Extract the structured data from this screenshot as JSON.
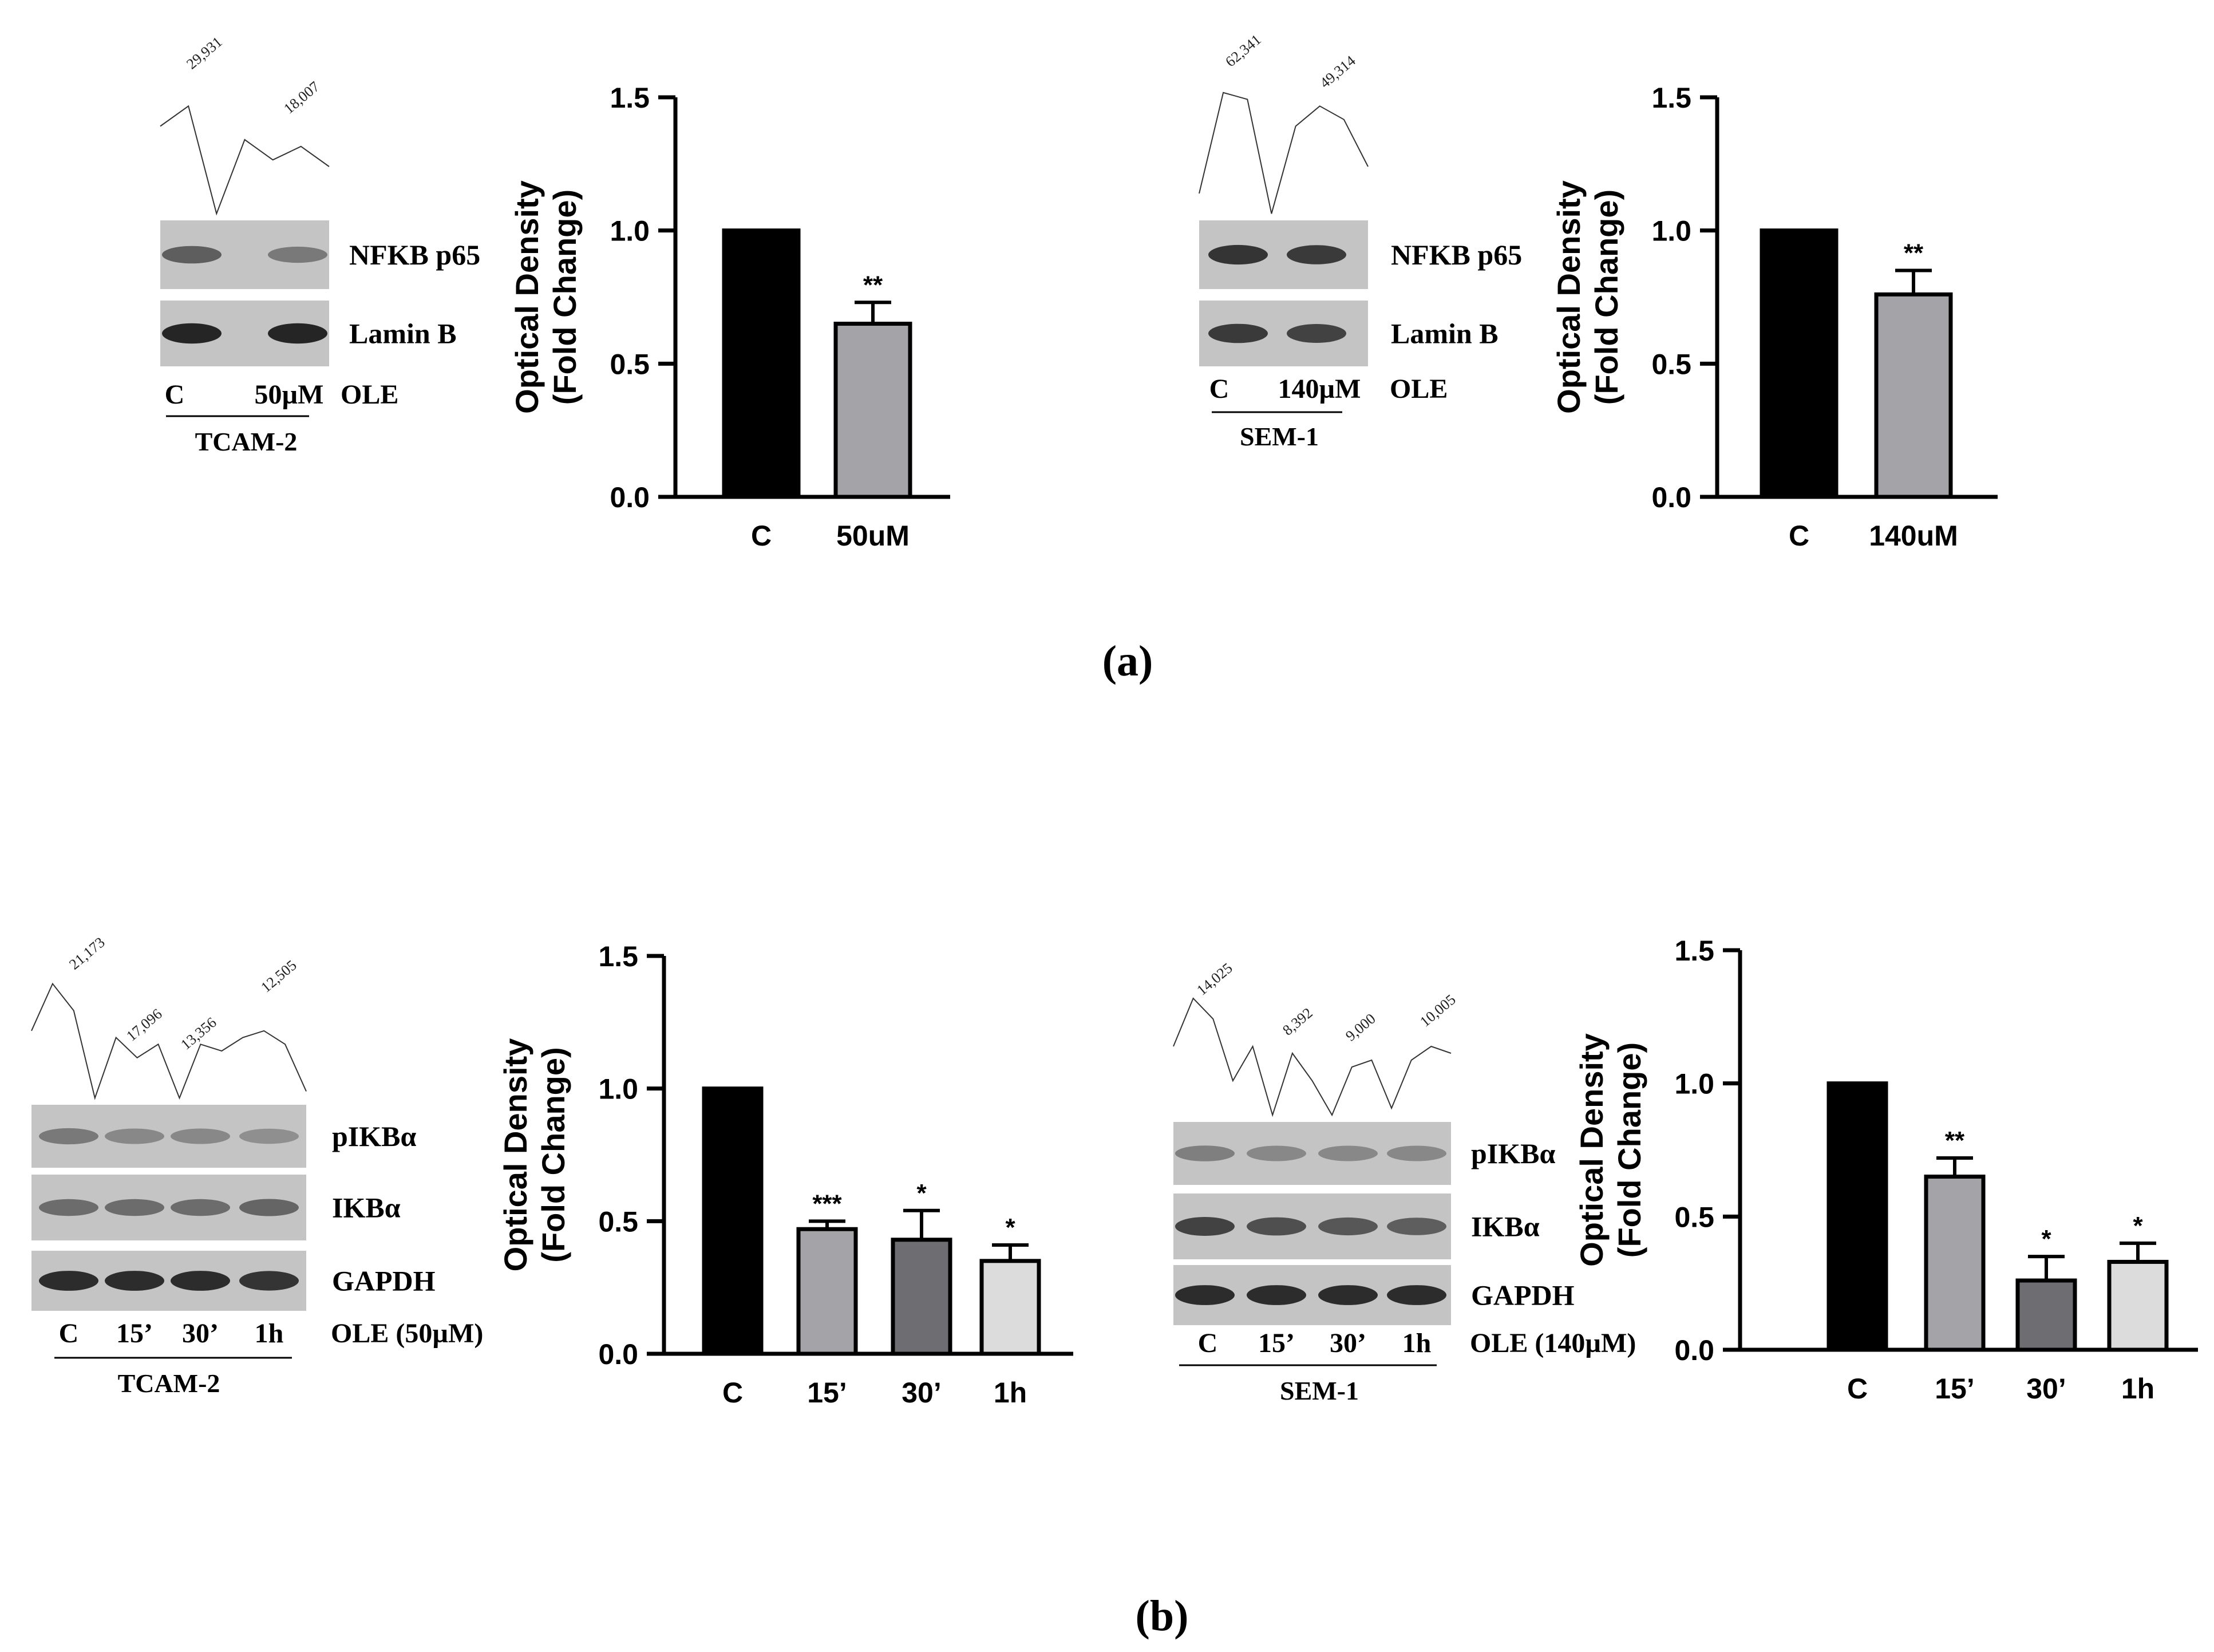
{
  "panel_labels": {
    "a": "(a)",
    "b": "(b)"
  },
  "colors": {
    "bar_control": "#000000",
    "bar_1": "#a3a3a8",
    "bar_2": "#6e6e72",
    "bar_3": "#dcdcdc",
    "band_bg": "#c4c4c4",
    "band_dark": "#1e1e1e"
  },
  "blots": [
    {
      "id": "a1",
      "cell_line": "TCAM-2",
      "lanes": [
        "C",
        "50µM"
      ],
      "treatment": "OLE",
      "proteins": [
        "NFKB p65",
        "Lamin B"
      ],
      "densitometry_values": [
        "29,931",
        "18,007"
      ],
      "band_intensity": [
        [
          0.55,
          0.35
        ],
        [
          0.95,
          0.95
        ]
      ]
    },
    {
      "id": "a2",
      "cell_line": "SEM-1",
      "lanes": [
        "C",
        "140µM"
      ],
      "treatment": "OLE",
      "proteins": [
        "NFKB p65",
        "Lamin B"
      ],
      "densitometry_values": [
        "62,341",
        "49,314"
      ],
      "band_intensity": [
        [
          0.85,
          0.8
        ],
        [
          0.8,
          0.75
        ]
      ]
    },
    {
      "id": "b1",
      "cell_line": "TCAM-2",
      "lanes": [
        "C",
        "15’",
        "30’",
        "1h"
      ],
      "treatment": "OLE (50µM)",
      "proteins": [
        "pIKBα",
        "IKBα",
        "GAPDH"
      ],
      "densitometry_values": [
        "21,173",
        "17,096",
        "13,356",
        "12,505"
      ],
      "band_intensity": [
        [
          0.35,
          0.25,
          0.25,
          0.2
        ],
        [
          0.45,
          0.45,
          0.45,
          0.5
        ],
        [
          0.9,
          0.9,
          0.9,
          0.85
        ]
      ]
    },
    {
      "id": "b2",
      "cell_line": "SEM-1",
      "lanes": [
        "C",
        "15’",
        "30’",
        "1h"
      ],
      "treatment": "OLE (140µM)",
      "proteins": [
        "pIKBα",
        "IKBα",
        "GAPDH"
      ],
      "densitometry_values": [
        "14,025",
        "8,392",
        "9,000",
        "10,005"
      ],
      "band_intensity": [
        [
          0.3,
          0.25,
          0.25,
          0.25
        ],
        [
          0.75,
          0.65,
          0.6,
          0.55
        ],
        [
          0.9,
          0.9,
          0.9,
          0.9
        ]
      ]
    }
  ],
  "chart_data": [
    {
      "id": "a1-chart",
      "type": "bar",
      "categories": [
        "C",
        "50uM"
      ],
      "values": [
        1.0,
        0.65
      ],
      "errors": [
        0,
        0.08
      ],
      "significance": [
        "",
        "**"
      ],
      "ylabel_line1": "Optical Density",
      "ylabel_line2": "(Fold Change)",
      "ylim": [
        0,
        1.5
      ],
      "yticks": [
        "0.0",
        "0.5",
        "1.0",
        "1.5"
      ],
      "colors": [
        "#000000",
        "#a3a3a8"
      ]
    },
    {
      "id": "a2-chart",
      "type": "bar",
      "categories": [
        "C",
        "140uM"
      ],
      "values": [
        1.0,
        0.76
      ],
      "errors": [
        0,
        0.09
      ],
      "significance": [
        "",
        "**"
      ],
      "ylabel_line1": "Optical Density",
      "ylabel_line2": "(Fold Change)",
      "ylim": [
        0,
        1.5
      ],
      "yticks": [
        "0.0",
        "0.5",
        "1.0",
        "1.5"
      ],
      "colors": [
        "#000000",
        "#a3a3a8"
      ]
    },
    {
      "id": "b1-chart",
      "type": "bar",
      "categories": [
        "C",
        "15’",
        "30’",
        "1h"
      ],
      "values": [
        1.0,
        0.47,
        0.43,
        0.35
      ],
      "errors": [
        0,
        0.03,
        0.11,
        0.06
      ],
      "significance": [
        "",
        "***",
        "*",
        "*"
      ],
      "ylabel_line1": "Optical Density",
      "ylabel_line2": "(Fold Change)",
      "ylim": [
        0,
        1.5
      ],
      "yticks": [
        "0.0",
        "0.5",
        "1.0",
        "1.5"
      ],
      "colors": [
        "#000000",
        "#a3a3a8",
        "#6e6e72",
        "#dcdcdc"
      ]
    },
    {
      "id": "b2-chart",
      "type": "bar",
      "categories": [
        "C",
        "15’",
        "30’",
        "1h"
      ],
      "values": [
        1.0,
        0.65,
        0.26,
        0.33
      ],
      "errors": [
        0,
        0.07,
        0.09,
        0.07
      ],
      "significance": [
        "",
        "**",
        "*",
        "*"
      ],
      "ylabel_line1": "Optical Density",
      "ylabel_line2": "(Fold Change)",
      "ylim": [
        0,
        1.5
      ],
      "yticks": [
        "0.0",
        "0.5",
        "1.0",
        "1.5"
      ],
      "colors": [
        "#000000",
        "#a3a3a8",
        "#6e6e72",
        "#dcdcdc"
      ]
    }
  ]
}
